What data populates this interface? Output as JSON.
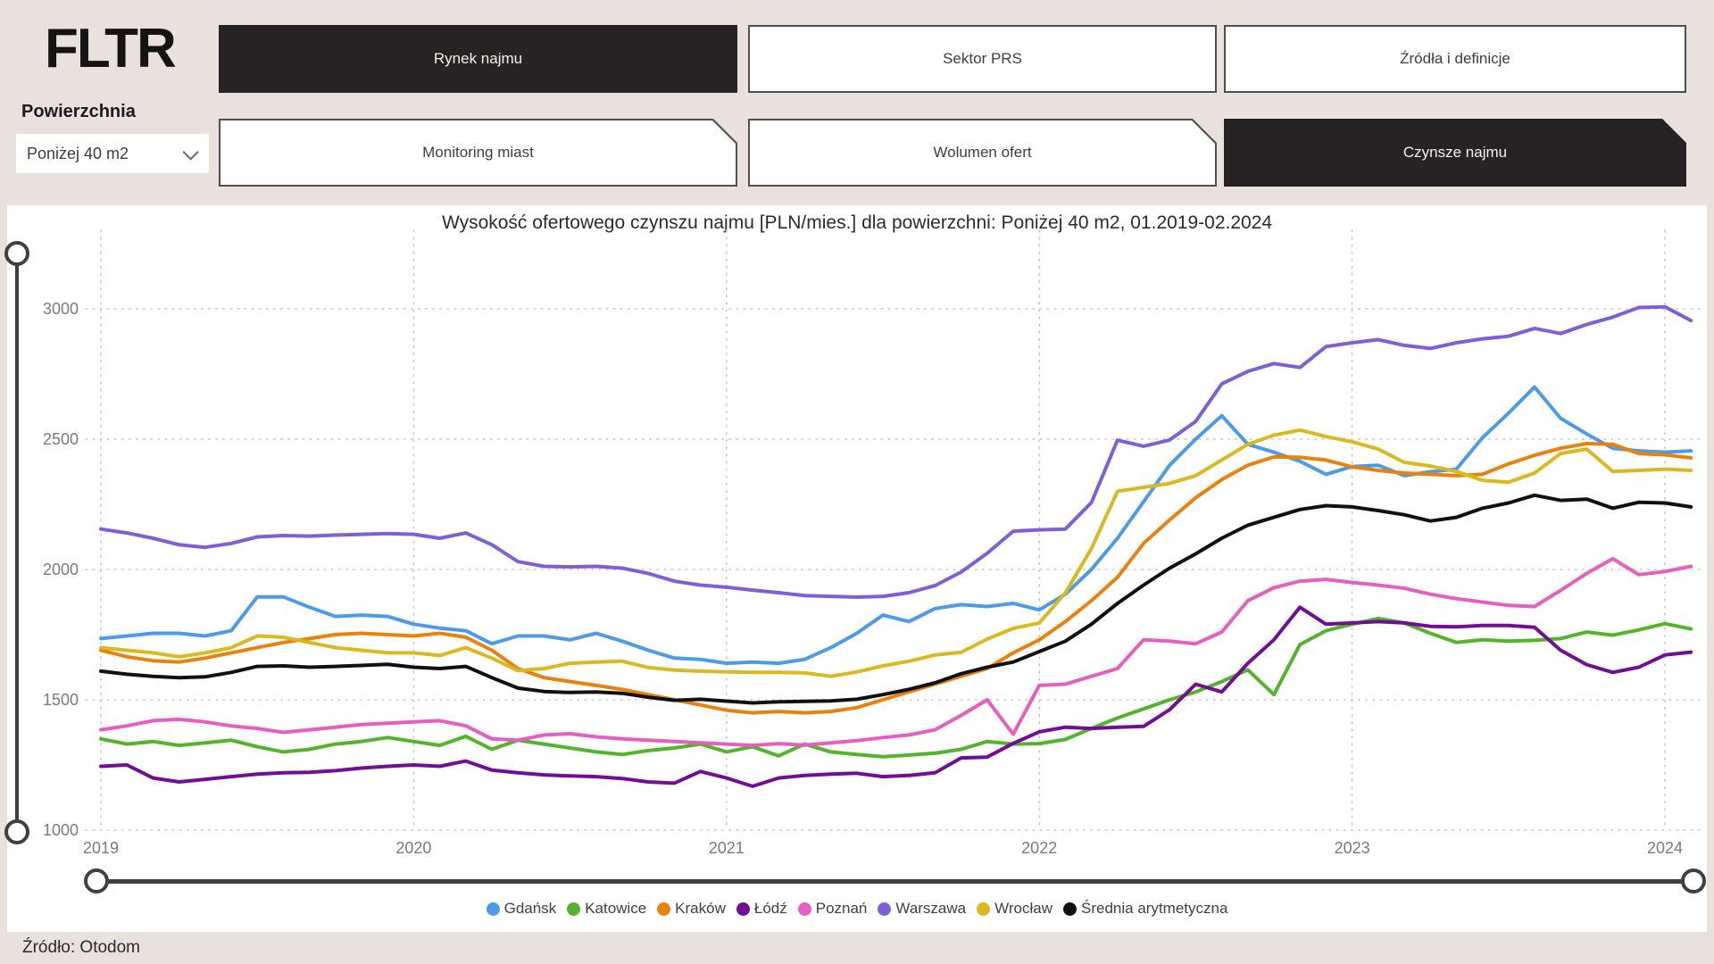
{
  "app": {
    "logo": "FLTR",
    "source_note": "Źródło: Otodom"
  },
  "filter": {
    "label": "Powierzchnia",
    "value": "Poniżej 40 m2"
  },
  "nav": {
    "row1": [
      {
        "label": "Rynek najmu",
        "active": true
      },
      {
        "label": "Sektor PRS",
        "active": false
      },
      {
        "label": "Źródła i definicje",
        "active": false
      }
    ],
    "row2": [
      {
        "label": "Monitoring miast",
        "active": false
      },
      {
        "label": "Wolumen ofert",
        "active": false
      },
      {
        "label": "Czynsze najmu",
        "active": true
      }
    ]
  },
  "chart_data": {
    "type": "line",
    "title": "Wysokość ofertowego czynszu najmu [PLN/mies.] dla powierzchni: Poniżej 40 m2, 01.2019-02.2024",
    "x_monthly_start": "2019-01",
    "x_monthly_end": "2024-02",
    "x_ticks": [
      2019,
      2020,
      2021,
      2022,
      2023,
      2024
    ],
    "y_ticks": [
      1000,
      1500,
      2000,
      2500,
      3000
    ],
    "ylim": [
      1000,
      3200
    ],
    "grid": "dotted",
    "legend_position": "bottom",
    "series": [
      {
        "id": "gdansk",
        "name": "Gdańsk",
        "color": "#4b9be8",
        "values": [
          1735,
          1745,
          1755,
          1755,
          1745,
          1765,
          1895,
          1895,
          1855,
          1820,
          1825,
          1820,
          1790,
          1775,
          1765,
          1715,
          1745,
          1745,
          1730,
          1755,
          1725,
          1690,
          1660,
          1655,
          1640,
          1645,
          1640,
          1655,
          1700,
          1755,
          1825,
          1800,
          1850,
          1865,
          1858,
          1870,
          1845,
          1905,
          2000,
          2120,
          2260,
          2400,
          2500,
          2590,
          2480,
          2450,
          2415,
          2365,
          2395,
          2400,
          2360,
          2375,
          2385,
          2505,
          2600,
          2700,
          2580,
          2520,
          2465,
          2455,
          2450,
          2455
        ]
      },
      {
        "id": "katowice",
        "name": "Katowice",
        "color": "#54b32c",
        "values": [
          1350,
          1330,
          1340,
          1325,
          1335,
          1345,
          1320,
          1300,
          1310,
          1330,
          1340,
          1355,
          1340,
          1325,
          1360,
          1310,
          1345,
          1330,
          1315,
          1300,
          1290,
          1305,
          1315,
          1330,
          1300,
          1320,
          1285,
          1330,
          1300,
          1290,
          1282,
          1288,
          1295,
          1310,
          1340,
          1330,
          1332,
          1348,
          1390,
          1430,
          1465,
          1500,
          1530,
          1570,
          1615,
          1520,
          1712,
          1765,
          1790,
          1812,
          1795,
          1755,
          1720,
          1730,
          1725,
          1728,
          1735,
          1760,
          1748,
          1768,
          1792,
          1772
        ]
      },
      {
        "id": "krakow",
        "name": "Kraków",
        "color": "#e8820c",
        "values": [
          1690,
          1665,
          1650,
          1645,
          1660,
          1680,
          1700,
          1720,
          1735,
          1750,
          1755,
          1750,
          1745,
          1755,
          1740,
          1690,
          1620,
          1585,
          1570,
          1555,
          1540,
          1520,
          1500,
          1480,
          1460,
          1450,
          1455,
          1450,
          1455,
          1470,
          1500,
          1530,
          1560,
          1590,
          1620,
          1680,
          1730,
          1800,
          1880,
          1970,
          2100,
          2190,
          2275,
          2345,
          2400,
          2432,
          2430,
          2420,
          2394,
          2380,
          2370,
          2365,
          2360,
          2365,
          2405,
          2438,
          2465,
          2483,
          2480,
          2445,
          2440,
          2428
        ]
      },
      {
        "id": "lodz",
        "name": "Łódź",
        "color": "#720d94",
        "values": [
          1245,
          1250,
          1200,
          1185,
          1195,
          1205,
          1215,
          1220,
          1222,
          1228,
          1238,
          1245,
          1250,
          1245,
          1265,
          1230,
          1220,
          1212,
          1208,
          1205,
          1198,
          1185,
          1180,
          1225,
          1200,
          1168,
          1200,
          1210,
          1215,
          1218,
          1205,
          1210,
          1220,
          1277,
          1280,
          1333,
          1377,
          1395,
          1390,
          1395,
          1398,
          1462,
          1560,
          1530,
          1640,
          1730,
          1855,
          1790,
          1795,
          1800,
          1795,
          1782,
          1780,
          1785,
          1785,
          1778,
          1690,
          1635,
          1605,
          1625,
          1672,
          1683
        ]
      },
      {
        "id": "poznan",
        "name": "Poznań",
        "color": "#e55fbe",
        "values": [
          1385,
          1400,
          1420,
          1425,
          1415,
          1400,
          1390,
          1375,
          1385,
          1395,
          1405,
          1410,
          1415,
          1420,
          1400,
          1350,
          1345,
          1365,
          1370,
          1358,
          1350,
          1345,
          1340,
          1335,
          1330,
          1325,
          1332,
          1326,
          1335,
          1343,
          1355,
          1365,
          1385,
          1440,
          1500,
          1368,
          1555,
          1560,
          1590,
          1620,
          1730,
          1725,
          1715,
          1760,
          1880,
          1930,
          1955,
          1962,
          1950,
          1940,
          1928,
          1905,
          1888,
          1875,
          1862,
          1858,
          1920,
          1985,
          2041,
          1980,
          1992,
          2012
        ]
      },
      {
        "id": "warszawa",
        "name": "Warszawa",
        "color": "#7e5fd8",
        "values": [
          2155,
          2140,
          2120,
          2095,
          2085,
          2100,
          2125,
          2130,
          2128,
          2132,
          2135,
          2138,
          2135,
          2120,
          2140,
          2095,
          2030,
          2012,
          2010,
          2012,
          2005,
          1985,
          1955,
          1940,
          1932,
          1921,
          1911,
          1900,
          1897,
          1894,
          1897,
          1911,
          1938,
          1990,
          2062,
          2147,
          2152,
          2155,
          2257,
          2496,
          2473,
          2497,
          2568,
          2712,
          2760,
          2790,
          2775,
          2855,
          2870,
          2882,
          2860,
          2848,
          2870,
          2885,
          2895,
          2925,
          2905,
          2940,
          2968,
          3005,
          3008,
          2955
        ]
      },
      {
        "id": "wroclaw",
        "name": "Wrocław",
        "color": "#d9b91f",
        "values": [
          1700,
          1690,
          1680,
          1665,
          1680,
          1700,
          1745,
          1740,
          1720,
          1700,
          1690,
          1680,
          1680,
          1670,
          1700,
          1660,
          1612,
          1620,
          1640,
          1645,
          1648,
          1624,
          1614,
          1610,
          1607,
          1605,
          1605,
          1603,
          1590,
          1607,
          1630,
          1648,
          1672,
          1682,
          1733,
          1774,
          1795,
          1910,
          2080,
          2300,
          2315,
          2330,
          2360,
          2420,
          2480,
          2515,
          2535,
          2510,
          2490,
          2462,
          2411,
          2397,
          2376,
          2342,
          2335,
          2370,
          2445,
          2462,
          2376,
          2380,
          2385,
          2380
        ]
      },
      {
        "id": "srednia",
        "name": "Średnia arytmetyczna",
        "color": "#111111",
        "values": [
          1610,
          1598,
          1590,
          1585,
          1588,
          1605,
          1628,
          1630,
          1625,
          1628,
          1632,
          1636,
          1625,
          1620,
          1628,
          1585,
          1545,
          1532,
          1528,
          1530,
          1525,
          1510,
          1498,
          1502,
          1495,
          1488,
          1492,
          1494,
          1496,
          1502,
          1520,
          1540,
          1565,
          1600,
          1625,
          1645,
          1685,
          1725,
          1790,
          1870,
          1940,
          2005,
          2060,
          2120,
          2170,
          2200,
          2230,
          2245,
          2240,
          2226,
          2210,
          2186,
          2200,
          2235,
          2255,
          2285,
          2265,
          2270,
          2235,
          2258,
          2255,
          2240
        ]
      }
    ]
  }
}
